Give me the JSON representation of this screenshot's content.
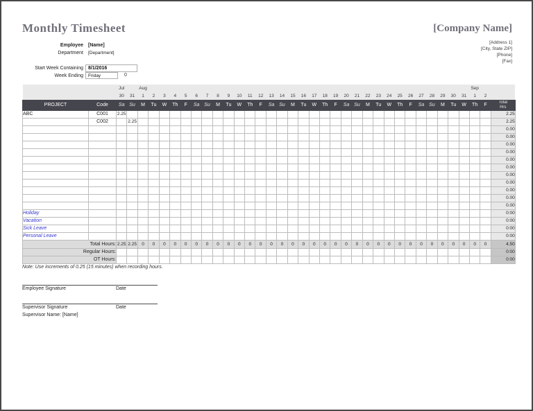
{
  "header": {
    "title": "Monthly Timesheet",
    "company_name": "[Company Name]",
    "address_lines": [
      "[Address 1]",
      "[City, State  ZIP]",
      "[Phone]",
      "[Fax]"
    ],
    "employee_label": "Employee",
    "employee_value": "[Name]",
    "department_label": "Department",
    "department_value": "[Department]",
    "start_week_label": "Start Week Containing",
    "start_week_value": "8/1/2016",
    "week_ending_label": "Week Ending",
    "week_ending_value": "Friday",
    "week_ending_aux": "0"
  },
  "grid": {
    "band": {
      "months": [
        {
          "col": 0,
          "label": "Jul"
        },
        {
          "col": 2,
          "label": "Aug"
        },
        {
          "col": 33,
          "label": "Sep"
        }
      ],
      "dates": [
        "30",
        "31",
        "1",
        "2",
        "3",
        "4",
        "5",
        "6",
        "7",
        "8",
        "9",
        "10",
        "11",
        "12",
        "13",
        "14",
        "15",
        "16",
        "17",
        "18",
        "19",
        "20",
        "21",
        "22",
        "23",
        "24",
        "25",
        "26",
        "27",
        "28",
        "29",
        "30",
        "31",
        "1",
        "2"
      ]
    },
    "header": {
      "project": "PROJECT",
      "code": "Code",
      "day_names": [
        "Sa",
        "Su",
        "M",
        "Tu",
        "W",
        "Th",
        "F"
      ],
      "weeks": 5,
      "total_lines": [
        "Total",
        "Hrs"
      ]
    },
    "rows": [
      {
        "project": "ABC",
        "code": "C001",
        "hours": {
          "0": "2.25"
        },
        "total": "2.25"
      },
      {
        "project": "",
        "code": "C002",
        "hours": {
          "1": "2.25"
        },
        "total": "2.25"
      },
      {
        "project": "",
        "code": "",
        "hours": {},
        "total": "0.00"
      },
      {
        "project": "",
        "code": "",
        "hours": {},
        "total": "0.00"
      },
      {
        "project": "",
        "code": "",
        "hours": {},
        "total": "0.00"
      },
      {
        "project": "",
        "code": "",
        "hours": {},
        "total": "0.00"
      },
      {
        "project": "",
        "code": "",
        "hours": {},
        "total": "0.00"
      },
      {
        "project": "",
        "code": "",
        "hours": {},
        "total": "0.00"
      },
      {
        "project": "",
        "code": "",
        "hours": {},
        "total": "0.00"
      },
      {
        "project": "",
        "code": "",
        "hours": {},
        "total": "0.00"
      },
      {
        "project": "",
        "code": "",
        "hours": {},
        "total": "0.00"
      },
      {
        "project": "",
        "code": "",
        "hours": {},
        "total": "0.00"
      },
      {
        "project": "",
        "code": "",
        "hours": {},
        "total": "0.00"
      }
    ],
    "leave_rows": [
      {
        "label": "Holiday",
        "total": "0:00"
      },
      {
        "label": "Vacation",
        "total": "0:00"
      },
      {
        "label": "Sick Leave",
        "total": "0:00"
      },
      {
        "label": "Personal Leave",
        "total": "0:00"
      }
    ],
    "totals": {
      "total_label": "Total Hours:",
      "values": [
        "2.25",
        "2.25",
        "0",
        "0",
        "0",
        "0",
        "0",
        "0",
        "0",
        "0",
        "0",
        "0",
        "0",
        "0",
        "0",
        "0",
        "0",
        "0",
        "0",
        "0",
        "0",
        "0",
        "0",
        "0",
        "0",
        "0",
        "0",
        "0",
        "0",
        "0",
        "0",
        "0",
        "0",
        "0",
        "0"
      ],
      "total_sum": "4.50",
      "regular_label": "Regular Hours:",
      "regular_sum": "0:00",
      "ot_label": "OT Hours:",
      "ot_sum": "0:00"
    },
    "note": "Note: Use increments of 0.25 (15 minutes) when recording hours."
  },
  "signatures": {
    "employee_label": "Employee Signature",
    "employee_date_label": "Date",
    "supervisor_label": "Supervisor Signature",
    "supervisor_date_label": "Date",
    "supervisor_name": "Supervisor Name: [Name]"
  },
  "colors": {
    "header_bar": "#45454d",
    "band_bg": "#e9e9e9",
    "total_col_bg": "#e8e8e8",
    "totals_row_bg": "#dcdcdc",
    "sum_cell_bg": "#c6c6c6",
    "leave_link_blue": "#3535cf",
    "title_gray": "#70707a"
  }
}
